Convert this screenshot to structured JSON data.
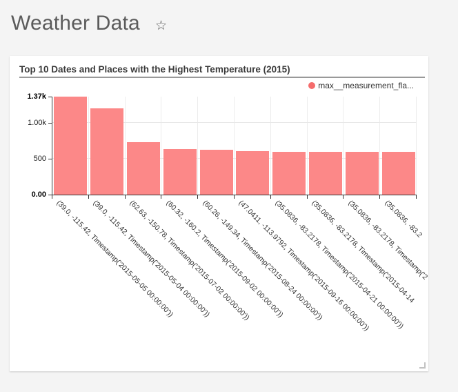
{
  "page": {
    "title": "Weather Data",
    "star_icon": "☆",
    "background": "#f4f4f4"
  },
  "chart": {
    "title": "Top 10 Dates and Places with the Highest Temperature (2015)",
    "legend": {
      "label": "max__measurement_fla...",
      "dot_color": "#f56c6c"
    },
    "bar_color": "#fc8888",
    "axis_color": "#333333",
    "grid_color": "#ececec",
    "y_ticks": [
      {
        "label": "0.00",
        "value": 0,
        "bold": true
      },
      {
        "label": "500",
        "value": 500,
        "bold": false
      },
      {
        "label": "1.00k",
        "value": 1000,
        "bold": false
      },
      {
        "label": "1.37k",
        "value": 1370,
        "bold": true
      }
    ]
  },
  "chart_data": {
    "type": "bar",
    "title": "Top 10 Dates and Places with the Highest Temperature (2015)",
    "legend": [
      "max__measurement_fla..."
    ],
    "legend_position": "top-right",
    "grid": true,
    "categories": [
      "(39.0, -115.42, Timestamp('2015-05-05 00:00:00'))",
      "(39.0, -115.42, Timestamp('2015-05-04 00:00:00'))",
      "(62.63, -150.78, Timestamp('2015-07-02 00:00:00'))",
      "(60.32, -160.2, Timestamp('2015-09-02 00:00:00'))",
      "(60.26, -149.34, Timestamp('2015-08-24 00:00:00'))",
      "(47.0411, -113.9792, Timestamp('2015-09-16 00:00:00'))",
      "(35.0836, -83.2178, Timestamp('2015-04-21 00:00:00'))",
      "(35.0836, -83.2178, Timestamp('2015-04-14",
      "(35.0836, -83.2178, Timestamp('2",
      "(35.0836, -83.2"
    ],
    "values": [
      1370,
      1210,
      730,
      640,
      630,
      605,
      600,
      600,
      600,
      600
    ],
    "xlabel": "",
    "ylabel": "",
    "ylim": [
      0,
      1370
    ],
    "y_tick_labels": [
      "0.00",
      "500",
      "1.00k",
      "1.37k"
    ]
  }
}
